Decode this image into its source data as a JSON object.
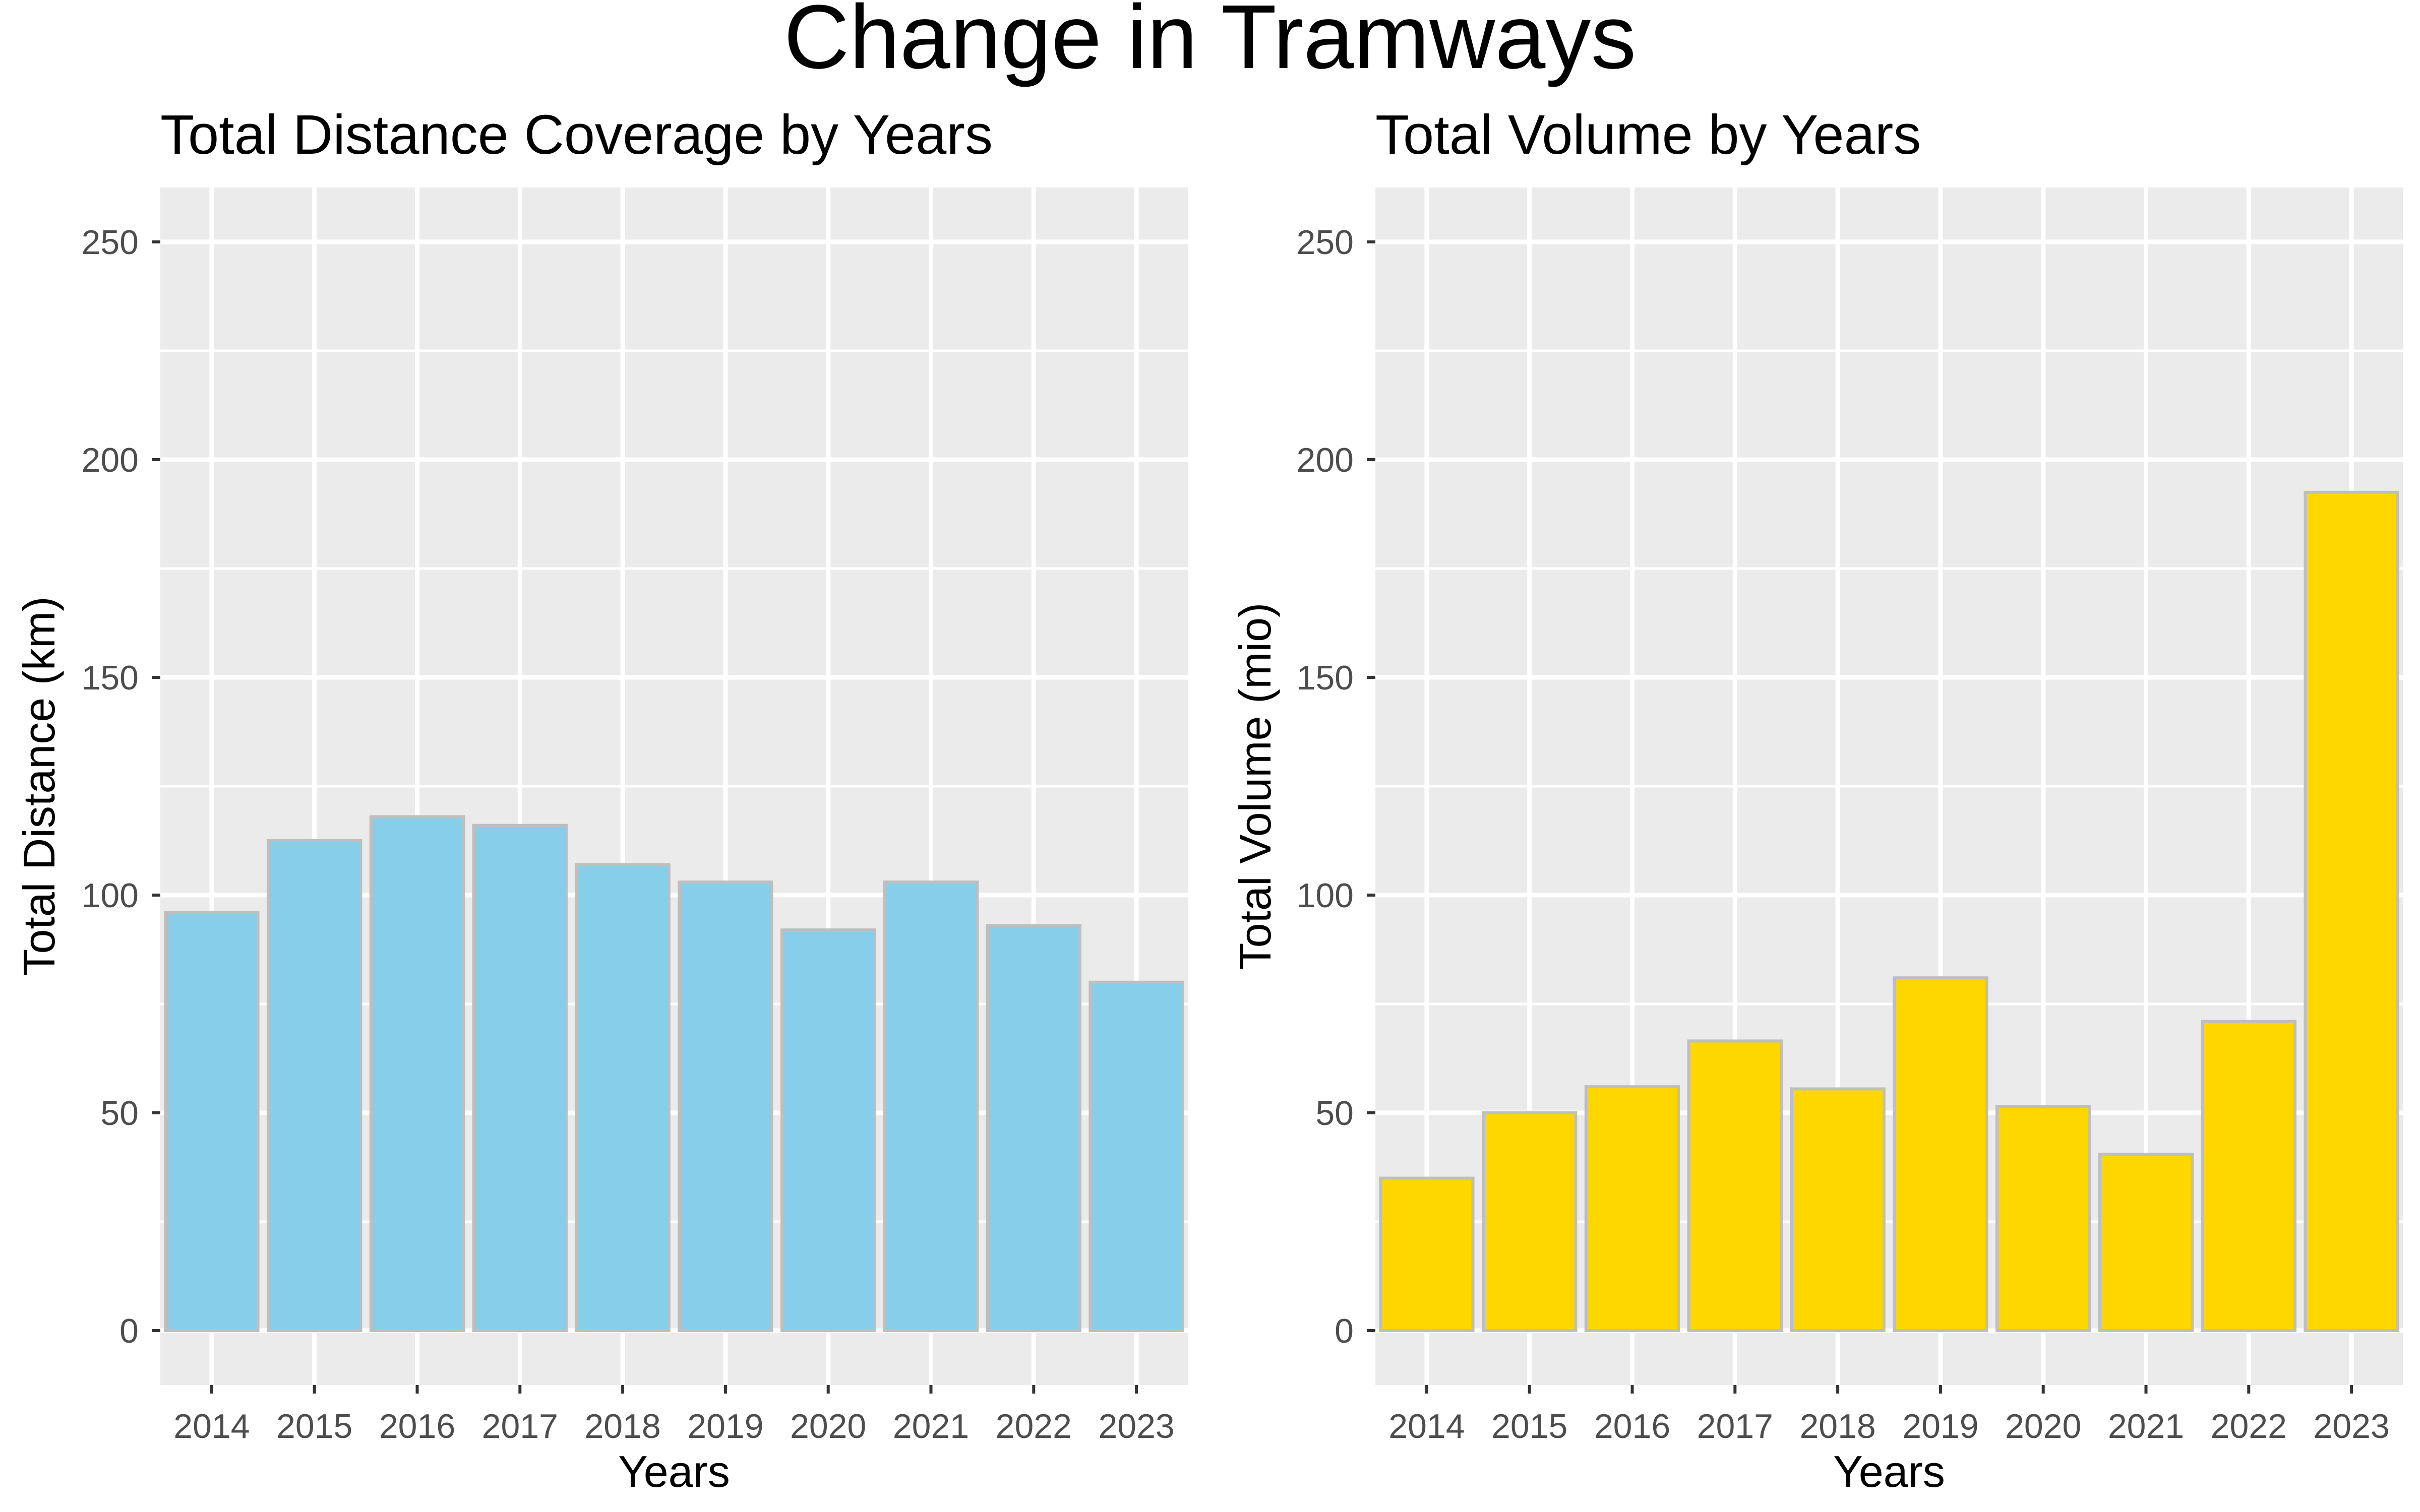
{
  "figure": {
    "title": "Change in Tramways"
  },
  "chart_data": [
    {
      "type": "bar",
      "title": "Total Distance Coverage by Years",
      "xlabel": "Years",
      "ylabel": "Total Distance (km)",
      "categories": [
        "2014",
        "2015",
        "2016",
        "2017",
        "2018",
        "2019",
        "2020",
        "2021",
        "2022",
        "2023"
      ],
      "values": [
        96,
        112.5,
        118,
        116,
        107,
        103,
        92,
        103,
        93,
        80
      ],
      "ylim": [
        -12.5,
        262.5
      ],
      "yticks": [
        0,
        50,
        100,
        150,
        200,
        250
      ],
      "grid": true,
      "fill_color": "#87CEEB",
      "edge_color": "#BEBEBE"
    },
    {
      "type": "bar",
      "title": "Total Volume by Years",
      "xlabel": "Years",
      "ylabel": "Total Volume (mio)",
      "categories": [
        "2014",
        "2015",
        "2016",
        "2017",
        "2018",
        "2019",
        "2020",
        "2021",
        "2022",
        "2023"
      ],
      "values": [
        35,
        50,
        56,
        66.5,
        55.5,
        81,
        51.5,
        40.5,
        71,
        192.5
      ],
      "ylim": [
        -12.5,
        262.5
      ],
      "yticks": [
        0,
        50,
        100,
        150,
        200,
        250
      ],
      "grid": true,
      "fill_color": "#FFD700",
      "edge_color": "#BEBEBE"
    }
  ]
}
